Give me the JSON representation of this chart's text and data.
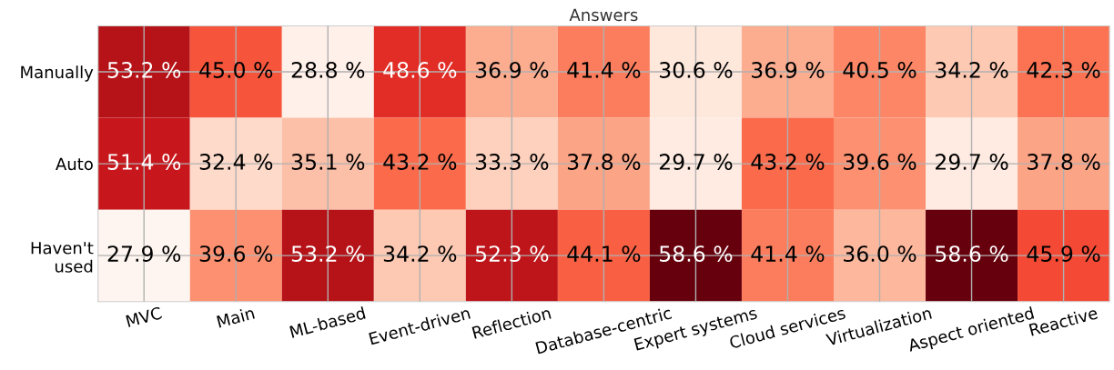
{
  "chart_data": {
    "type": "heatmap",
    "title": "Answers",
    "categories": [
      "MVC",
      "Main",
      "ML-based",
      "Event-driven",
      "Reflection",
      "Database-centric",
      "Expert systems",
      "Cloud services",
      "Virtualization",
      "Aspect oriented",
      "Reactive"
    ],
    "y_categories": [
      "Manually",
      "Auto",
      "Haven't\nused"
    ],
    "cells": [
      [
        53.2,
        45.0,
        28.8,
        48.6,
        36.9,
        41.4,
        30.6,
        36.9,
        40.5,
        34.2,
        42.3
      ],
      [
        51.4,
        32.4,
        35.1,
        43.2,
        33.3,
        37.8,
        29.7,
        43.2,
        39.6,
        29.7,
        37.8
      ],
      [
        27.9,
        39.6,
        53.2,
        34.2,
        52.3,
        44.1,
        58.6,
        41.4,
        36.0,
        58.6,
        45.9
      ]
    ],
    "cell_labels": [
      [
        "53.2 %",
        "45.0 %",
        "28.8 %",
        "48.6 %",
        "36.9 %",
        "41.4 %",
        "30.6 %",
        "36.9 %",
        "40.5 %",
        "34.2 %",
        "42.3 %"
      ],
      [
        "51.4 %",
        "32.4 %",
        "35.1 %",
        "43.2 %",
        "33.3 %",
        "37.8 %",
        "29.7 %",
        "43.2 %",
        "39.6 %",
        "29.7 %",
        "37.8 %"
      ],
      [
        "27.9 %",
        "39.6 %",
        "53.2 %",
        "34.2 %",
        "52.3 %",
        "44.1 %",
        "58.6 %",
        "41.4 %",
        "36.0 %",
        "58.6 %",
        "45.9 %"
      ]
    ],
    "grid": true
  }
}
